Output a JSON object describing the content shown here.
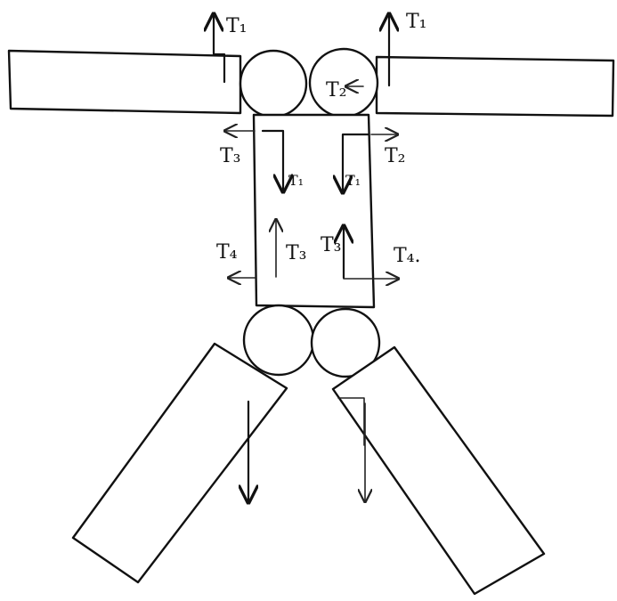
{
  "labels": {
    "t1_top_left": "T₁",
    "t1_top_right": "T₁",
    "t2_right_circle": "T₂",
    "t3_left_upper": "T₃",
    "t1_left_upper": "T₁",
    "t1_right_upper": "T₁",
    "t2_right_upper": "T₂",
    "t4_left": "T₄",
    "t3_left_lower": "T₃",
    "t3_right_lower": "T₃",
    "t4_right": "T₄."
  }
}
